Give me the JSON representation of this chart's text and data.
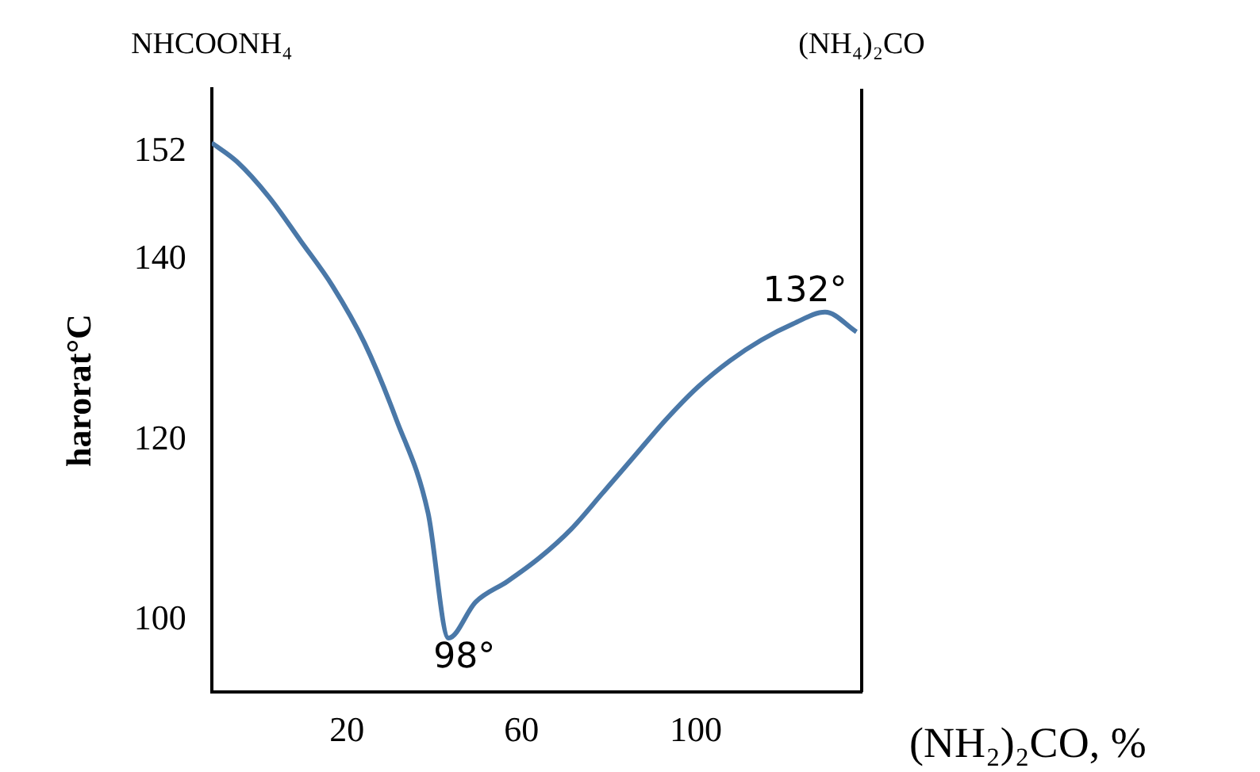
{
  "chart_data": {
    "type": "line",
    "ylabel": "harorat°C",
    "xlabel": "(NH₂)₂CO, %",
    "annotations": [
      "NHCOONH₄",
      "(NH₄)₂CO",
      {
        "text": "98°",
        "x": 43.3,
        "y": 98
      },
      {
        "text": "132°",
        "x": 136.8,
        "y": 132
      }
    ],
    "xlim": [
      -11,
      138
    ],
    "xticks": [
      20,
      60,
      100
    ],
    "ylim": [
      92,
      159
    ],
    "yticks": [
      100,
      120,
      140,
      152
    ],
    "grid": false,
    "legend": false,
    "marker": "none",
    "line_style": "solid",
    "series": [
      {
        "color": "#4a78a8",
        "x": [
          -11,
          -5.2,
          2.1,
          9.4,
          16.7,
          24.0,
          31.3,
          38.6,
          43.3,
          49.5,
          56.8,
          64.1,
          71.4,
          78.6,
          85.9,
          93.2,
          100.5,
          107.8,
          115.0,
          122.3,
          129.6,
          136.8
        ],
        "values": [
          153,
          150.9,
          147.0,
          142.1,
          137.1,
          130.8,
          122.3,
          111.9,
          98,
          102.0,
          104.3,
          106.9,
          110.1,
          114.1,
          118.2,
          122.3,
          125.9,
          128.8,
          131.1,
          132.9,
          134.2,
          132
        ]
      }
    ]
  }
}
